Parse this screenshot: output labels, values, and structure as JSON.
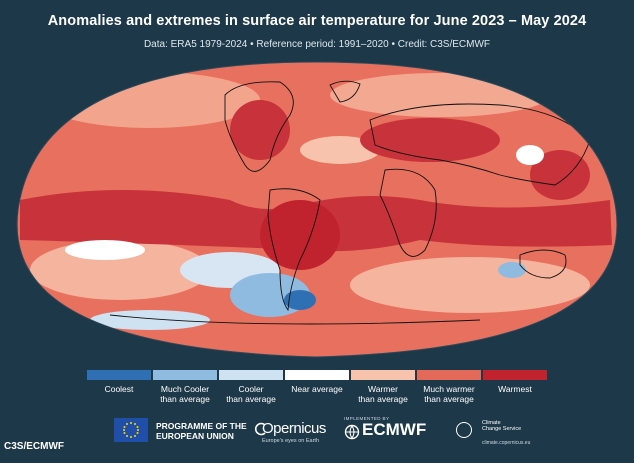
{
  "title": "Anomalies and extremes in surface air temperature for June 2023 – May 2024",
  "subtitle": "Data: ERA5 1979-2024 • Reference period: 1991–2020 • Credit: C3S/ECMWF",
  "legend": [
    {
      "label": "Coolest",
      "color": "#2f6fb4"
    },
    {
      "label": "Much Cooler\nthan average",
      "color": "#8fbbe0"
    },
    {
      "label": "Cooler\nthan average",
      "color": "#cfe2f1"
    },
    {
      "label": "Near average",
      "color": "#ffffff"
    },
    {
      "label": "Warmer\nthan average",
      "color": "#f7c3ad"
    },
    {
      "label": "Much warmer\nthan average",
      "color": "#e36a59"
    },
    {
      "label": "Warmest",
      "color": "#c0222e"
    }
  ],
  "logos": {
    "eu": "PROGRAMME OF THE\nEUROPEAN UNION",
    "copernicus": "Opernicus",
    "copernicus_tagline": "Europe's eyes on Earth",
    "ecmwf_pre": "IMPLEMENTED BY",
    "ecmwf": "ECMWF",
    "ccs": "Climate\nChange Service",
    "ccs_url": "climate.copernicus.eu"
  },
  "credit": "C3S/ECMWF",
  "colors": {
    "background": "#1d3848",
    "map_base": "#e8705e",
    "warmest": "#c0222e",
    "coolest": "#2f6fb4"
  }
}
